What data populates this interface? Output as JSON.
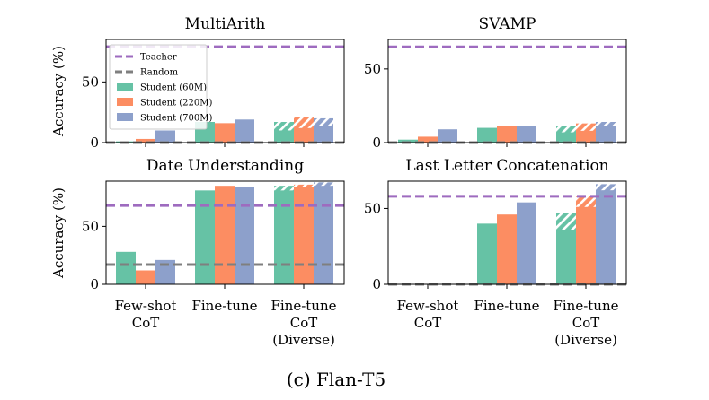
{
  "caption": "(c) Flan-T5",
  "colors": {
    "teacher": "#9e6bbf",
    "random": "#7f7f7f",
    "student_60m": "#66c2a5",
    "student_220m": "#fc8d62",
    "student_700m": "#8da0cb"
  },
  "legend": {
    "placement": "upper-left of first panel",
    "entries": [
      "Teacher",
      "Random",
      "Student (60M)",
      "Student (220M)",
      "Student (700M)"
    ]
  },
  "chart_data": [
    {
      "type": "bar",
      "title": "MultiArith",
      "ylabel": "Accuracy (%)",
      "ylim": [
        0,
        85
      ],
      "yticks": [
        0,
        50
      ],
      "categories": [
        "Few-shot CoT",
        "Fine-tune",
        "Fine-tune CoT (Diverse)"
      ],
      "teacher": 79,
      "random": 0,
      "series": [
        {
          "name": "Student (60M)",
          "values": [
            1,
            17,
            10
          ],
          "diverse": 17
        },
        {
          "name": "Student (220M)",
          "values": [
            3,
            16,
            12
          ],
          "diverse": 21
        },
        {
          "name": "Student (700M)",
          "values": [
            10,
            19,
            14
          ],
          "diverse": 20
        }
      ]
    },
    {
      "type": "bar",
      "title": "SVAMP",
      "ylabel": "",
      "ylim": [
        0,
        70
      ],
      "yticks": [
        0,
        50
      ],
      "categories": [
        "Few-shot CoT",
        "Fine-tune",
        "Fine-tune CoT (Diverse)"
      ],
      "teacher": 65,
      "random": 0,
      "series": [
        {
          "name": "Student (60M)",
          "values": [
            2,
            10,
            7
          ],
          "diverse": 11
        },
        {
          "name": "Student (220M)",
          "values": [
            4,
            11,
            8
          ],
          "diverse": 13
        },
        {
          "name": "Student (700M)",
          "values": [
            9,
            11,
            11
          ],
          "diverse": 14
        }
      ]
    },
    {
      "type": "bar",
      "title": "Date Understanding",
      "ylabel": "Accuracy (%)",
      "ylim": [
        0,
        89
      ],
      "yticks": [
        0,
        50
      ],
      "categories": [
        "Few-shot CoT",
        "Fine-tune",
        "Fine-tune CoT (Diverse)"
      ],
      "teacher": 68,
      "random": 17,
      "series": [
        {
          "name": "Student (60M)",
          "values": [
            28,
            81,
            81
          ],
          "diverse": 85
        },
        {
          "name": "Student (220M)",
          "values": [
            12,
            85,
            84
          ],
          "diverse": 86
        },
        {
          "name": "Student (700M)",
          "values": [
            21,
            84,
            85
          ],
          "diverse": 88
        }
      ]
    },
    {
      "type": "bar",
      "title": "Last Letter Concatenation",
      "ylabel": "",
      "ylim": [
        0,
        68
      ],
      "yticks": [
        0,
        50
      ],
      "categories": [
        "Few-shot CoT",
        "Fine-tune",
        "Fine-tune CoT (Diverse)"
      ],
      "teacher": 58,
      "random": 0,
      "series": [
        {
          "name": "Student (60M)",
          "values": [
            0,
            40,
            36
          ],
          "diverse": 47
        },
        {
          "name": "Student (220M)",
          "values": [
            0,
            46,
            51
          ],
          "diverse": 58
        },
        {
          "name": "Student (700M)",
          "values": [
            0,
            54,
            62
          ],
          "diverse": 66
        }
      ]
    }
  ]
}
